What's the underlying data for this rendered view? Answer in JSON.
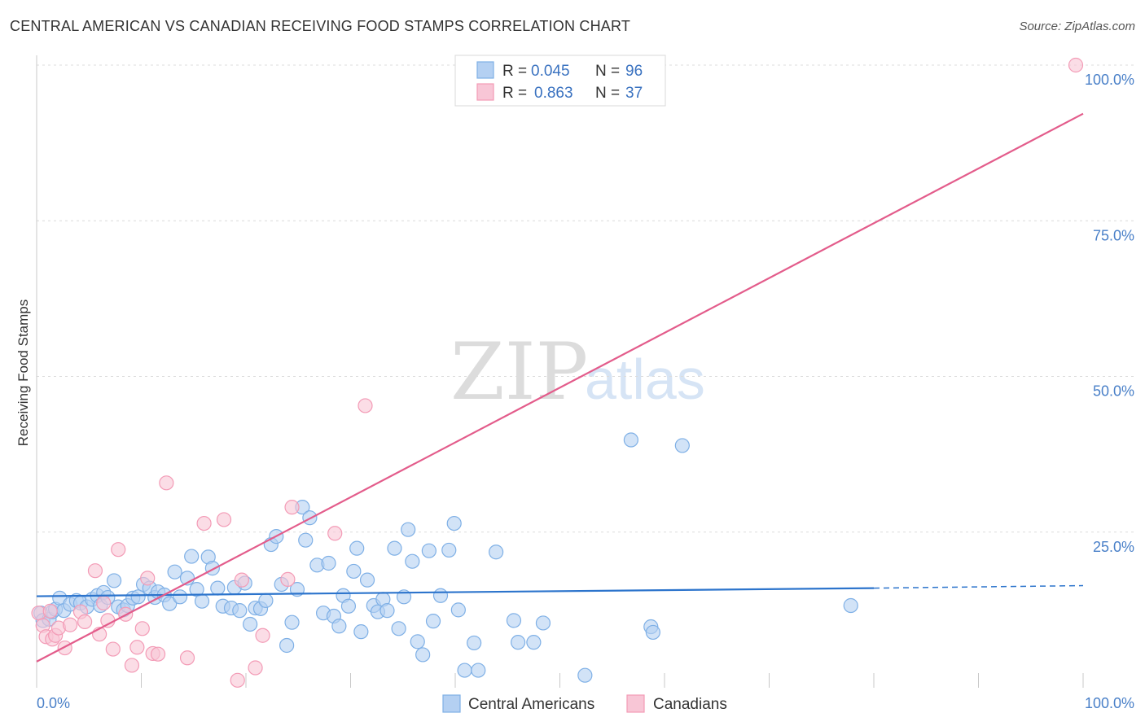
{
  "header": {
    "title": "CENTRAL AMERICAN VS CANADIAN RECEIVING FOOD STAMPS CORRELATION CHART",
    "source": "Source: ZipAtlas.com"
  },
  "watermark": {
    "zip": "ZIP",
    "atlas": "atlas"
  },
  "legend_top": {
    "rows": [
      {
        "r_label": "R =",
        "r_value": "0.045",
        "n_label": "N =",
        "n_value": "96"
      },
      {
        "r_label": "R =",
        "r_value": "0.863",
        "n_label": "N =",
        "n_value": "37"
      }
    ]
  },
  "chart_data": {
    "type": "scatter",
    "title": "CENTRAL AMERICAN VS CANADIAN RECEIVING FOOD STAMPS CORRELATION CHART",
    "xlabel": "",
    "ylabel": "Receiving Food Stamps",
    "xlim": [
      0,
      100
    ],
    "ylim": [
      0,
      100
    ],
    "x_tick_labels": [
      "0.0%",
      "100.0%"
    ],
    "y_tick_values": [
      25,
      50,
      75,
      100
    ],
    "y_tick_labels": [
      "25.0%",
      "50.0%",
      "75.0%",
      "100.0%"
    ],
    "grid": true,
    "legend_position": "top-center",
    "series": [
      {
        "name": "Central Americans",
        "color": "#7fb0e6",
        "fill": "#b4d0f2",
        "line_color": "#2c74cc",
        "r": 0.045,
        "n": 96,
        "trend": {
          "x0": 0,
          "y0": 14.7,
          "x1": 80,
          "y1": 16.0,
          "dash_to_x": 100,
          "dash_to_y": 16.4
        },
        "points": [
          [
            0.4,
            12.0
          ],
          [
            0.6,
            10.8
          ],
          [
            1.2,
            11.0
          ],
          [
            1.5,
            12.2
          ],
          [
            1.8,
            12.6
          ],
          [
            2.2,
            14.4
          ],
          [
            2.6,
            12.4
          ],
          [
            3.2,
            13.4
          ],
          [
            3.8,
            14.0
          ],
          [
            4.2,
            13.6
          ],
          [
            4.8,
            13.0
          ],
          [
            5.3,
            14.2
          ],
          [
            5.8,
            14.8
          ],
          [
            6.1,
            13.2
          ],
          [
            6.4,
            15.3
          ],
          [
            6.8,
            14.5
          ],
          [
            7.4,
            17.2
          ],
          [
            7.8,
            13.0
          ],
          [
            8.3,
            12.5
          ],
          [
            8.7,
            13.2
          ],
          [
            9.2,
            14.4
          ],
          [
            9.7,
            14.6
          ],
          [
            10.2,
            16.6
          ],
          [
            10.8,
            16.0
          ],
          [
            11.3,
            14.5
          ],
          [
            11.6,
            15.4
          ],
          [
            12.2,
            14.9
          ],
          [
            12.7,
            13.5
          ],
          [
            13.2,
            18.6
          ],
          [
            13.7,
            14.6
          ],
          [
            14.4,
            17.6
          ],
          [
            14.8,
            21.1
          ],
          [
            15.3,
            15.8
          ],
          [
            15.8,
            13.9
          ],
          [
            16.4,
            21.0
          ],
          [
            16.8,
            19.2
          ],
          [
            17.3,
            16.0
          ],
          [
            17.8,
            13.1
          ],
          [
            18.6,
            12.8
          ],
          [
            18.9,
            16.1
          ],
          [
            19.4,
            12.4
          ],
          [
            19.9,
            16.8
          ],
          [
            20.4,
            10.2
          ],
          [
            20.9,
            12.8
          ],
          [
            21.4,
            12.7
          ],
          [
            21.9,
            14.0
          ],
          [
            22.4,
            23.0
          ],
          [
            22.9,
            24.3
          ],
          [
            23.4,
            16.6
          ],
          [
            23.9,
            6.8
          ],
          [
            24.4,
            10.5
          ],
          [
            24.9,
            15.8
          ],
          [
            25.4,
            29.0
          ],
          [
            25.7,
            23.7
          ],
          [
            26.1,
            27.3
          ],
          [
            26.8,
            19.7
          ],
          [
            27.4,
            12.0
          ],
          [
            27.9,
            20.0
          ],
          [
            28.4,
            11.5
          ],
          [
            28.9,
            9.9
          ],
          [
            29.3,
            14.8
          ],
          [
            29.8,
            13.1
          ],
          [
            30.3,
            18.7
          ],
          [
            30.6,
            22.4
          ],
          [
            31.0,
            9.0
          ],
          [
            31.6,
            17.3
          ],
          [
            32.2,
            13.2
          ],
          [
            32.6,
            12.2
          ],
          [
            33.1,
            14.2
          ],
          [
            33.5,
            12.4
          ],
          [
            34.2,
            22.4
          ],
          [
            34.6,
            9.5
          ],
          [
            35.1,
            14.6
          ],
          [
            35.5,
            25.4
          ],
          [
            35.9,
            20.3
          ],
          [
            36.4,
            7.4
          ],
          [
            36.9,
            5.3
          ],
          [
            37.5,
            22.0
          ],
          [
            37.9,
            10.7
          ],
          [
            38.6,
            14.8
          ],
          [
            39.4,
            22.1
          ],
          [
            39.9,
            26.4
          ],
          [
            40.3,
            12.5
          ],
          [
            40.9,
            2.8
          ],
          [
            41.8,
            7.2
          ],
          [
            42.2,
            2.8
          ],
          [
            43.9,
            21.8
          ],
          [
            45.6,
            10.8
          ],
          [
            46.0,
            7.3
          ],
          [
            47.5,
            7.3
          ],
          [
            48.4,
            10.4
          ],
          [
            52.4,
            2.0
          ],
          [
            56.8,
            39.8
          ],
          [
            58.7,
            9.8
          ],
          [
            58.9,
            8.9
          ],
          [
            61.7,
            38.9
          ],
          [
            77.8,
            13.2
          ]
        ]
      },
      {
        "name": "Canadians",
        "color": "#f39bb6",
        "fill": "#f8c6d6",
        "line_color": "#e35c8b",
        "r": 0.863,
        "n": 37,
        "trend": {
          "x0": 0,
          "y0": 4.2,
          "x1": 100,
          "y1": 92.2
        },
        "points": [
          [
            0.2,
            12.0
          ],
          [
            0.6,
            10.0
          ],
          [
            0.9,
            8.2
          ],
          [
            1.3,
            12.3
          ],
          [
            1.5,
            7.8
          ],
          [
            1.8,
            8.4
          ],
          [
            2.1,
            9.6
          ],
          [
            2.7,
            6.4
          ],
          [
            3.2,
            10.1
          ],
          [
            4.2,
            12.2
          ],
          [
            4.6,
            10.6
          ],
          [
            5.6,
            18.8
          ],
          [
            6.0,
            8.6
          ],
          [
            6.4,
            13.6
          ],
          [
            6.8,
            10.8
          ],
          [
            7.3,
            6.2
          ],
          [
            7.8,
            22.2
          ],
          [
            8.5,
            11.8
          ],
          [
            9.1,
            3.6
          ],
          [
            9.6,
            6.5
          ],
          [
            10.1,
            9.5
          ],
          [
            10.6,
            17.6
          ],
          [
            11.1,
            5.5
          ],
          [
            11.6,
            5.4
          ],
          [
            12.4,
            32.9
          ],
          [
            14.4,
            4.8
          ],
          [
            16.0,
            26.4
          ],
          [
            17.9,
            27.0
          ],
          [
            19.2,
            1.2
          ],
          [
            19.6,
            17.3
          ],
          [
            20.9,
            3.2
          ],
          [
            21.6,
            8.4
          ],
          [
            24.0,
            17.4
          ],
          [
            24.4,
            29.0
          ],
          [
            28.5,
            24.8
          ],
          [
            31.4,
            45.3
          ],
          [
            99.3,
            100.0
          ]
        ]
      }
    ]
  },
  "legend_bottom": {
    "items": [
      {
        "label": "Central Americans"
      },
      {
        "label": "Canadians"
      }
    ]
  }
}
